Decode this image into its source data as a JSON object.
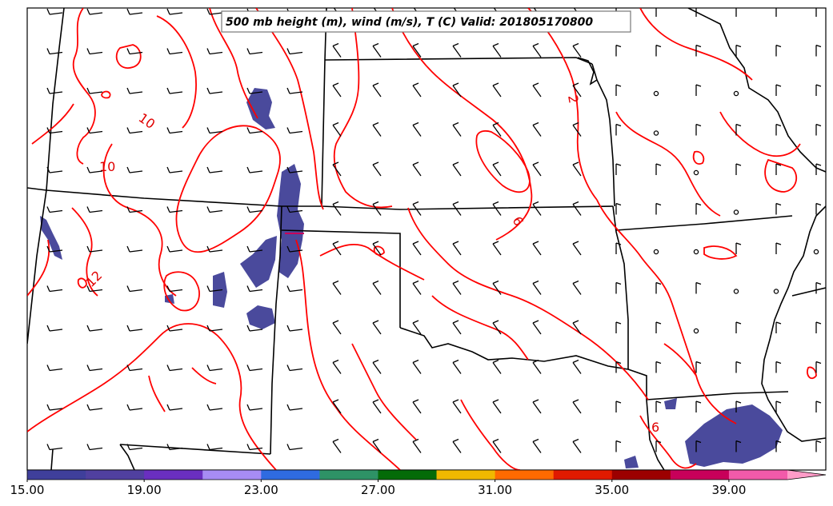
{
  "title": "500 mb height (m), wind (m/s), T (C) Valid: 201805170800",
  "colorbar": {
    "ticks": [
      "15.00",
      "19.00",
      "23.00",
      "27.00",
      "31.00",
      "35.00",
      "39.00"
    ],
    "colors": [
      "#3f3f9b",
      "#50409f",
      "#6a2fc0",
      "#a78cf4",
      "#2f6be0",
      "#2e9266",
      "#046b08",
      "#f0b800",
      "#ff6a00",
      "#e01a00",
      "#9c0000",
      "#c8005a",
      "#f25aaa",
      "#ff9cc8"
    ]
  },
  "contour_labels": [
    "10",
    "10",
    "12",
    "2",
    "6",
    "6"
  ],
  "colors": {
    "contour": "#ff0000",
    "border": "#000000",
    "shade": "#4a4a9c"
  },
  "icons": [
    "wind-barb-icon",
    "calm-wind-icon"
  ]
}
